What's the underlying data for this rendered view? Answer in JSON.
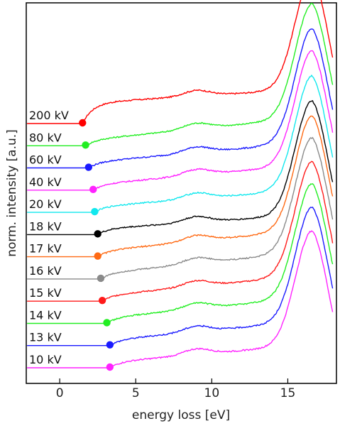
{
  "chart_data": {
    "type": "line",
    "xlabel": "energy loss [eV]",
    "ylabel": "norm. intensity [a.u.]",
    "xlim": [
      -2.2,
      18.2
    ],
    "xticks": [
      0,
      5,
      10,
      15
    ],
    "grid": false,
    "legend": "inline-left",
    "series": [
      {
        "name": "200 kV",
        "color": "#ff0000",
        "marker_x": 1.5,
        "onset": 1.5,
        "rise": 0.18,
        "pre": 0.1
      },
      {
        "name": "80 kV",
        "color": "#22ee22",
        "marker_x": 1.7,
        "onset": 1.7,
        "rise": 0.05,
        "pre": 0.16
      },
      {
        "name": "60 kV",
        "color": "#1a1aff",
        "marker_x": 1.9,
        "onset": 1.9,
        "rise": 0.05,
        "pre": 0.14
      },
      {
        "name": "40 kV",
        "color": "#ff22ff",
        "marker_x": 2.2,
        "onset": 2.2,
        "rise": 0.05,
        "pre": 0.14
      },
      {
        "name": "20 kV",
        "color": "#11e8ee",
        "marker_x": 2.3,
        "onset": 2.3,
        "rise": 0.05,
        "pre": 0.12
      },
      {
        "name": "18 kV",
        "color": "#000000",
        "marker_x": 2.5,
        "onset": 2.5,
        "rise": 0.05,
        "pre": 0.1
      },
      {
        "name": "17 kV",
        "color": "#ff6a14",
        "marker_x": 2.5,
        "onset": 2.5,
        "rise": 0.05,
        "pre": 0.15
      },
      {
        "name": "16 kV",
        "color": "#8a8a8a",
        "marker_x": 2.7,
        "onset": 2.7,
        "rise": 0.05,
        "pre": 0.15
      },
      {
        "name": "15 kV",
        "color": "#ff1a1a",
        "marker_x": 2.8,
        "onset": 2.8,
        "rise": 0.05,
        "pre": 0.14
      },
      {
        "name": "14 kV",
        "color": "#22ee22",
        "marker_x": 3.1,
        "onset": 3.1,
        "rise": 0.05,
        "pre": 0.14
      },
      {
        "name": "13 kV",
        "color": "#1a1aff",
        "marker_x": 3.3,
        "onset": 3.3,
        "rise": 0.05,
        "pre": 0.13
      },
      {
        "name": "10 kV",
        "color": "#ff22ff",
        "marker_x": 3.3,
        "onset": 3.3,
        "rise": 0.05,
        "pre": 0.12
      }
    ]
  }
}
